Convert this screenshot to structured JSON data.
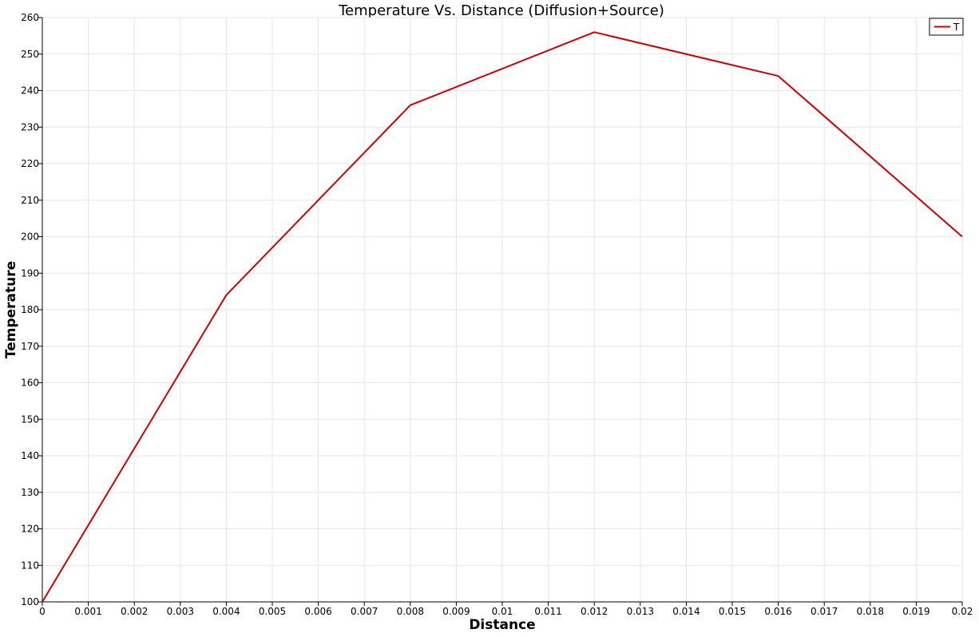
{
  "chart_data": {
    "type": "line",
    "title": "Temperature Vs. Distance (Diffusion+Source)",
    "xlabel": "Distance",
    "ylabel": "Temperature",
    "xlim": [
      0,
      0.02
    ],
    "ylim": [
      100,
      260
    ],
    "x_ticks": [
      "0",
      "0.001",
      "0.002",
      "0.003",
      "0.004",
      "0.005",
      "0.006",
      "0.007",
      "0.008",
      "0.009",
      "0.01",
      "0.011",
      "0.012",
      "0.013",
      "0.014",
      "0.015",
      "0.016",
      "0.017",
      "0.018",
      "0.019",
      "0.02"
    ],
    "y_ticks": [
      "100",
      "110",
      "120",
      "130",
      "140",
      "150",
      "160",
      "170",
      "180",
      "190",
      "200",
      "210",
      "220",
      "230",
      "240",
      "250",
      "260"
    ],
    "grid": true,
    "legend_position": "top-right",
    "series": [
      {
        "name": "T",
        "color": "#cc0000",
        "x": [
          0,
          0.004,
          0.008,
          0.012,
          0.016,
          0.02
        ],
        "y": [
          100,
          184,
          236,
          256,
          244,
          200
        ]
      }
    ]
  }
}
